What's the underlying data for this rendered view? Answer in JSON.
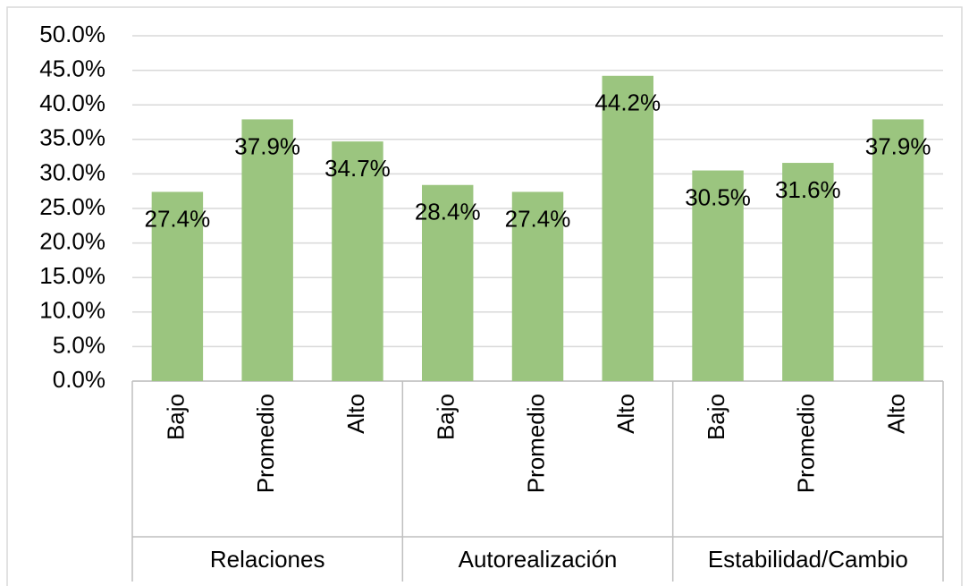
{
  "chart_data": {
    "type": "bar",
    "categories": [
      "Bajo",
      "Promedio",
      "Alto",
      "Bajo",
      "Promedio",
      "Alto",
      "Bajo",
      "Promedio",
      "Alto"
    ],
    "groups": [
      "Relaciones",
      "Autorealización",
      "Estabilidad/Cambio"
    ],
    "values": [
      27.4,
      37.9,
      34.7,
      28.4,
      27.4,
      44.2,
      30.5,
      31.6,
      37.9
    ],
    "value_labels": [
      "27.4%",
      "37.9%",
      "34.7%",
      "28.4%",
      "27.4%",
      "44.2%",
      "30.5%",
      "31.6%",
      "37.9%"
    ],
    "color": "#9bc57f",
    "ylim": [
      0,
      50
    ],
    "yticks": [
      {
        "value": 0,
        "label": "0.0%"
      },
      {
        "value": 5,
        "label": "5.0%"
      },
      {
        "value": 10,
        "label": "10.0%"
      },
      {
        "value": 15,
        "label": "15.0%"
      },
      {
        "value": 20,
        "label": "20.0%"
      },
      {
        "value": 25,
        "label": "25.0%"
      },
      {
        "value": 30,
        "label": "30.0%"
      },
      {
        "value": 35,
        "label": "35.0%"
      },
      {
        "value": 40,
        "label": "40.0%"
      },
      {
        "value": 45,
        "label": "45.0%"
      },
      {
        "value": 50,
        "label": "50.0%"
      }
    ],
    "grid": true
  }
}
